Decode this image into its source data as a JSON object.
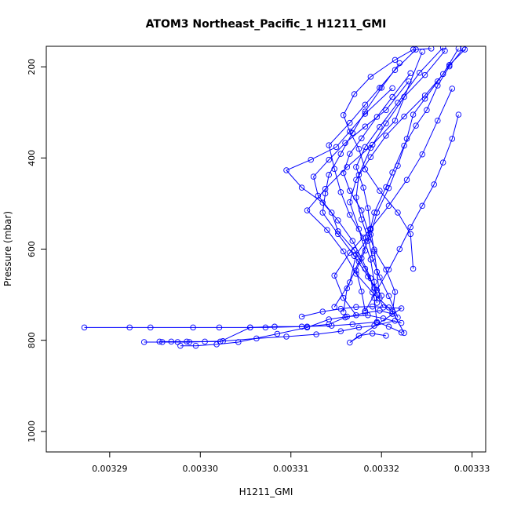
{
  "chart_data": {
    "type": "line",
    "title": "ATOM3 Northeast_Pacific_1 H1211_GMI",
    "xlabel": "H1211_GMI",
    "ylabel": "Pressure (mbar)",
    "xlim": [
      0.003283,
      0.0033315
    ],
    "ylim": [
      1045,
      155
    ],
    "y_reversed": true,
    "grid": false,
    "legend": "none",
    "x_ticks": [
      {
        "value": 0.00329,
        "label": "0.00329"
      },
      {
        "value": 0.0033,
        "label": "0.00330"
      },
      {
        "value": 0.00331,
        "label": "0.00331"
      },
      {
        "value": 0.00332,
        "label": "0.00332"
      },
      {
        "value": 0.00333,
        "label": "0.00333"
      }
    ],
    "y_ticks": [
      {
        "value": 200,
        "label": "200"
      },
      {
        "value": 400,
        "label": "400"
      },
      {
        "value": 600,
        "label": "600"
      },
      {
        "value": 800,
        "label": "800"
      },
      {
        "value": 1000,
        "label": "1000"
      }
    ],
    "colors": {
      "series": "#0000ff",
      "axes": "#000000",
      "background": "#ffffff"
    },
    "series": [
      {
        "x": [
          0.0032872,
          0.0032922,
          0.0032945,
          0.0032992,
          0.0033021,
          0.0033055,
          0.0033072,
          0.0033112,
          0.0033145,
          0.0033168,
          0.0033195,
          0.0033208,
          0.0033222
        ],
        "y": [
          772,
          772,
          772,
          772,
          772,
          772,
          772,
          770,
          768,
          765,
          760,
          770,
          783
        ]
      },
      {
        "x": [
          0.0032938,
          0.0032958,
          0.0032975,
          0.0032988,
          0.0033005,
          0.0033025,
          0.0033062,
          0.0033095,
          0.0033128,
          0.0033155,
          0.0033175,
          0.0033192,
          0.0033215
        ],
        "y": [
          804,
          804,
          804,
          804,
          803,
          802,
          796,
          792,
          787,
          780,
          772,
          768,
          757
        ]
      },
      {
        "x": [
          0.0032978,
          0.0032995,
          0.0033018,
          0.0033042,
          0.0033085,
          0.0033118,
          0.0033142,
          0.0033162,
          0.0033185,
          0.0033202,
          0.0033222
        ],
        "y": [
          812,
          812,
          809,
          804,
          786,
          772,
          754,
          748,
          745,
          752,
          762
        ]
      },
      {
        "x": [
          0.0032955,
          0.0032968,
          0.0032985,
          0.0033022,
          0.0033055,
          0.0033082,
          0.0033118,
          0.0033142,
          0.003316,
          0.0033182,
          0.0033198,
          0.0033212
        ],
        "y": [
          803,
          803,
          803,
          803,
          772,
          770,
          770,
          765,
          750,
          740,
          735,
          742
        ]
      },
      {
        "x": [
          0.0033112,
          0.0033135,
          0.0033155,
          0.0033172,
          0.003319,
          0.0033208,
          0.0033222,
          0.0033165,
          0.0033175,
          0.003319,
          0.0033205
        ],
        "y": [
          748,
          737,
          731,
          727,
          726,
          728,
          730,
          805,
          790,
          785,
          790
        ]
      },
      {
        "x": [
          0.0033148,
          0.0033165,
          0.0033172,
          0.0033188,
          0.0033195,
          0.0033208,
          0.0033218,
          0.0033228,
          0.0033235,
          0.0033248,
          0.0033262,
          0.0033275,
          0.0033292
        ],
        "y": [
          727,
          673,
          612,
          568,
          520,
          466,
          417,
          358,
          305,
          270,
          232,
          196,
          162
        ]
      },
      {
        "x": [
          0.0033158,
          0.0033162,
          0.0033175,
          0.0033185,
          0.0033192,
          0.0033205,
          0.0033212,
          0.0033225,
          0.0033238,
          0.003325,
          0.0033262,
          0.0033275,
          0.003329
        ],
        "y": [
          738,
          686,
          627,
          582,
          520,
          464,
          432,
          373,
          329,
          295,
          241,
          199,
          160
        ]
      },
      {
        "x": [
          0.0033182,
          0.0033178,
          0.0033172,
          0.0033182,
          0.0033175,
          0.0033165,
          0.0033172,
          0.0033188,
          0.0033205,
          0.0033225,
          0.0033248,
          0.0033268,
          0.0033285
        ],
        "y": [
          736,
          693,
          647,
          603,
          556,
          497,
          448,
          398,
          351,
          309,
          263,
          216,
          160
        ]
      },
      {
        "x": [
          0.0033195,
          0.0033192,
          0.0033188,
          0.003318,
          0.0033165,
          0.0033155,
          0.0033148,
          0.0033142,
          0.0033165,
          0.0033182,
          0.0033198,
          0.0033215,
          0.0033238
        ],
        "y": [
          718,
          672,
          623,
          575,
          525,
          475,
          424,
          372,
          323,
          283,
          246,
          207,
          162
        ]
      },
      {
        "x": [
          0.00332,
          0.0033185,
          0.003317,
          0.0033152,
          0.0033135,
          0.0033138,
          0.0033142,
          0.0033155,
          0.0033168,
          0.0033182,
          0.00332,
          0.003322
        ],
        "y": [
          702,
          660,
          615,
          567,
          520,
          478,
          437,
          391,
          345,
          298,
          246,
          192
        ]
      },
      {
        "x": [
          0.0033225,
          0.0033212,
          0.003319,
          0.0033172,
          0.0033158,
          0.003314,
          0.0033118,
          0.0033138,
          0.0033162,
          0.003319,
          0.0033215,
          0.0033245
        ],
        "y": [
          784,
          737,
          695,
          654,
          605,
          558,
          515,
          468,
          420,
          371,
          318,
          167
        ]
      },
      {
        "x": [
          0.0033202,
          0.0033192,
          0.0033182,
          0.003317,
          0.0033152,
          0.0033145,
          0.003313,
          0.0033125,
          0.0033142,
          0.003316,
          0.0033182,
          0.0033205,
          0.003323
        ],
        "y": [
          728,
          685,
          643,
          602,
          561,
          520,
          483,
          441,
          404,
          367,
          331,
          295,
          232
        ]
      },
      {
        "x": [
          0.0033195,
          0.0033192,
          0.0033188,
          0.0033178,
          0.0033168,
          0.0033152,
          0.0033135,
          0.0033112,
          0.0033095,
          0.0033122,
          0.003315,
          0.0033182,
          0.0033212
        ],
        "y": [
          762,
          707,
          664,
          620,
          582,
          537,
          498,
          465,
          427,
          404,
          376,
          303,
          247
        ]
      },
      {
        "x": [
          0.0033212,
          0.0033215,
          0.0033205,
          0.0033192,
          0.0033185,
          0.0033178,
          0.0033165,
          0.0033158,
          0.0033165,
          0.0033178,
          0.0033195,
          0.0033212,
          0.0033232
        ],
        "y": [
          742,
          694,
          645,
          601,
          559,
          515,
          472,
          433,
          391,
          357,
          310,
          266,
          214
        ]
      },
      {
        "x": [
          0.0033218,
          0.0033208,
          0.0033198,
          0.003319,
          0.0033185,
          0.0033178,
          0.0033172,
          0.0033175,
          0.0033188,
          0.0033205,
          0.0033225,
          0.0033248,
          0.003327
        ],
        "y": [
          750,
          703,
          662,
          619,
          575,
          535,
          487,
          437,
          378,
          324,
          266,
          218,
          165
        ]
      },
      {
        "x": [
          0.0033235,
          0.0033232,
          0.0033218,
          0.0033198,
          0.0033182,
          0.0033175,
          0.0033165,
          0.0033158,
          0.003317,
          0.0033188,
          0.0033215,
          0.0033235,
          0.0033255
        ],
        "y": [
          643,
          567,
          520,
          472,
          425,
          380,
          342,
          306,
          260,
          222,
          185,
          162,
          160
        ]
      },
      {
        "x": [
          0.0033198,
          0.0033195,
          0.0033192,
          0.0033188,
          0.0033185,
          0.003318,
          0.0033172,
          0.0033182,
          0.0033198,
          0.0033218,
          0.0033242,
          0.0033268
        ],
        "y": [
          708,
          650,
          605,
          557,
          510,
          465,
          420,
          376,
          332,
          279,
          213,
          158
        ]
      },
      {
        "x": [
          0.0033182,
          0.0033195,
          0.0033208,
          0.003322,
          0.0033232,
          0.0033245,
          0.0033258,
          0.0033268,
          0.0033278,
          0.0033285
        ],
        "y": [
          736,
          690,
          645,
          600,
          552,
          505,
          458,
          410,
          358,
          305
        ]
      },
      {
        "x": [
          0.0033172,
          0.0033158,
          0.0033148,
          0.0033165,
          0.0033188,
          0.0033208,
          0.0033228,
          0.0033245,
          0.0033262,
          0.0033278
        ],
        "y": [
          745,
          707,
          658,
          608,
          555,
          505,
          448,
          392,
          318,
          248
        ]
      }
    ]
  }
}
